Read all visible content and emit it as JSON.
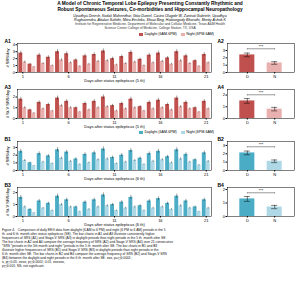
{
  "title": "A Model of Chronic Temporal Lobe Epilepsy Presenting Constantly Rhythmic and\nRobust Spontaneous Seizures, Co-morbidities and Hippocampal Neuropathology",
  "subtitle": "Upadhya Dinesh, Kodali Maheedhar, Gitai Daniel, Castro Olagide W, Zanirati Gabriele, Upadhya\nRaghavendra, Attaluri Sahithi, Mitra Eeshika, Shuai Bing, Hattiangady Bharathi, Shetty Ashok K",
  "annotations": [
    {
      "text": "Institute for Regenerative Medicine, Department of Molecular and Cellular Medicine, Texas A&M Health\nScience Center College of Medicine, College Station, TX, USA"
    }
  ],
  "caption": "Figure 4.   Comparison of daily EEG data from daylight (6 AM to 6 PM) and night (6 PM to 6 AM) periods in the 5\nth  and 6 th  month after status epilepticus (SE). The bar charts in A1 and A3 illustrate consistently higher\nfrequencies of SRS (A1) and Stage-V SRS (A3) in daylight periods than night periods in the 5 th  month after SE.\nThe bar charts in A2 and A4 compare the average frequency of SRS (A2) and Stage-V SRS (A4) over 21 consecutive\n*SRS *periods in the 5th month and night *periods in the 5 th  month after SE. The bar charts in B1 and B3\nillustrate higher frequencies of SRS (B1) and Stage-V SRS (B3) in daylight periods than night periods in the\n6 th  month after SE. The bar charts in B2 and B4 compare the average frequency of SRS (B2) and Stage-V SRS\n(B4) between the daylight and night periods in the 6 th  month after SE. ¤¤¤, p≤\u00030.0001;\n¤, p\u00030.05; ¤¤¤¤, p\u00030.0001; 0.01; ¤¤¤¤¤¤,\np\u00030.001; NS, not significant.",
  "chart_data": [
    {
      "type": "bar",
      "title": "A1",
      "xlabel": "Days after status epilepticus (5 th)",
      "ylabel": "# SRS/day",
      "categories": [
        "1",
        null,
        null,
        null,
        null,
        "6",
        null,
        null,
        null,
        null,
        "11",
        null,
        null,
        null,
        null,
        "16",
        null,
        null,
        null,
        null,
        "21"
      ],
      "series": [
        {
          "name": "Daylight (6AM-6PM)",
          "color": "#c0504d",
          "values": [
            2.8,
            1.2,
            2.5,
            2.2,
            3.0,
            2.7,
            1.8,
            2.4,
            2.6,
            3.1,
            2.0,
            2.3,
            2.9,
            1.9,
            2.5,
            2.8,
            2.1,
            3.0,
            2.4,
            1.7,
            2.6
          ],
          "errors": [
            0.28,
            0.12,
            0.25,
            0.22,
            0.3,
            0.27,
            0.18,
            0.24,
            0.26,
            0.31,
            0.2,
            0.23,
            0.29,
            0.19,
            0.25,
            0.28,
            0.21,
            0.3,
            0.24,
            0.17,
            0.26
          ]
        },
        {
          "name": "Night (6PM-6AM)",
          "color": "#e8b0ae",
          "values": [
            1.5,
            0.8,
            1.3,
            1.0,
            1.8,
            1.4,
            0.9,
            1.2,
            1.6,
            1.7,
            1.1,
            1.3,
            1.5,
            1.0,
            1.4,
            1.6,
            1.2,
            1.7,
            1.3,
            0.9,
            1.4
          ],
          "errors": [
            0.15,
            0.08,
            0.13,
            0.1,
            0.18,
            0.14,
            0.09,
            0.12,
            0.16,
            0.17,
            0.11,
            0.13,
            0.15,
            0.1,
            0.14,
            0.16,
            0.12,
            0.17,
            0.13,
            0.09,
            0.14
          ]
        }
      ],
      "ylim": [
        0,
        4.185
      ],
      "yticks": [
        0,
        1,
        2,
        3,
        4
      ],
      "legend": "upper right",
      "grid": false
    },
    {
      "type": "bar",
      "title": "A2",
      "categories": [
        "D",
        "N"
      ],
      "values": [
        2.4,
        1.3
      ],
      "errors": [
        0.25,
        0.18
      ],
      "colors": [
        "#c0504d",
        "#e8b0ae"
      ],
      "ylim": [
        0,
        3.96
      ],
      "yticks": [
        0,
        1,
        2,
        3
      ],
      "annotations": [
        {
          "text": "***",
          "y": 3.24
        }
      ],
      "grid": false
    },
    {
      "type": "bar",
      "title": "A3",
      "xlabel": "Days after status epilepticus (5 th)",
      "ylabel": "# St-V SRS/day",
      "categories": [
        "1",
        null,
        null,
        null,
        null,
        "6",
        null,
        null,
        null,
        null,
        "11",
        null,
        null,
        null,
        null,
        "16",
        null,
        null,
        null,
        null,
        "21"
      ],
      "series": [
        {
          "name": "Daylight (6AM-6PM)",
          "color": "#c0504d",
          "values": [
            1.8,
            0.8,
            1.5,
            1.3,
            1.9,
            1.6,
            1.0,
            1.4,
            1.6,
            2.0,
            1.2,
            1.4,
            1.8,
            1.1,
            1.5,
            1.7,
            1.3,
            1.9,
            1.5,
            1.0,
            1.6
          ],
          "errors": [
            0.18,
            0.08,
            0.15,
            0.13,
            0.19,
            0.16,
            0.1,
            0.14,
            0.16,
            0.2,
            0.12,
            0.14,
            0.18,
            0.11,
            0.15,
            0.17,
            0.13,
            0.19,
            0.15,
            0.1,
            0.16
          ]
        },
        {
          "name": "Night (6PM-6AM)",
          "color": "#e8b0ae",
          "values": [
            1.0,
            0.5,
            0.9,
            0.7,
            1.2,
            1.0,
            0.6,
            0.8,
            1.0,
            1.1,
            0.7,
            0.9,
            1.0,
            0.7,
            0.9,
            1.0,
            0.8,
            1.1,
            0.9,
            0.6,
            0.9
          ],
          "errors": [
            0.1,
            0.05,
            0.09,
            0.07,
            0.12,
            0.1,
            0.06,
            0.08,
            0.1,
            0.11,
            0.07,
            0.09,
            0.1,
            0.07,
            0.09,
            0.1,
            0.08,
            0.11,
            0.09,
            0.06,
            0.09
          ]
        }
      ],
      "ylim": [
        0,
        2.7
      ],
      "yticks": [
        0,
        1,
        2
      ],
      "legend": false,
      "grid": false
    },
    {
      "type": "bar",
      "title": "A4",
      "categories": [
        "D",
        "N"
      ],
      "values": [
        1.5,
        0.8
      ],
      "errors": [
        0.2,
        0.15
      ],
      "colors": [
        "#c0504d",
        "#e8b0ae"
      ],
      "ylim": [
        0,
        2.475
      ],
      "yticks": [
        0,
        1,
        2
      ],
      "annotations": [
        {
          "text": "***",
          "y": 2.025
        }
      ],
      "grid": false
    },
    {
      "type": "bar",
      "title": "B1",
      "xlabel": "Days after status epilepticus (6 th)",
      "ylabel": "# SRS/day",
      "categories": [
        "1",
        null,
        null,
        null,
        null,
        "6",
        null,
        null,
        null,
        null,
        "11",
        null,
        null,
        null,
        null,
        "16",
        null,
        null,
        null,
        null,
        "21"
      ],
      "series": [
        {
          "name": "Daylight (6AM-6PM)",
          "color": "#4bacc6",
          "values": [
            2.5,
            1.0,
            2.2,
            1.9,
            2.7,
            2.4,
            1.5,
            2.1,
            2.3,
            2.8,
            1.7,
            2.0,
            2.6,
            1.6,
            2.2,
            2.5,
            1.8,
            2.7,
            2.1,
            1.4,
            2.3
          ],
          "errors": [
            0.25,
            0.1,
            0.22,
            0.19,
            0.27,
            0.24,
            0.15,
            0.21,
            0.23,
            0.28,
            0.17,
            0.2,
            0.26,
            0.16,
            0.22,
            0.25,
            0.18,
            0.27,
            0.21,
            0.14,
            0.23
          ]
        },
        {
          "name": "Night (6PM-6AM)",
          "color": "#aed8e6",
          "values": [
            1.3,
            0.6,
            1.1,
            0.9,
            1.6,
            1.2,
            0.8,
            1.0,
            1.4,
            1.5,
            0.9,
            1.1,
            1.3,
            0.8,
            1.2,
            1.4,
            1.0,
            1.5,
            1.1,
            0.7,
            1.2
          ],
          "errors": [
            0.13,
            0.06,
            0.11,
            0.09,
            0.16,
            0.12,
            0.08,
            0.1,
            0.14,
            0.15,
            0.09,
            0.11,
            0.13,
            0.08,
            0.12,
            0.14,
            0.1,
            0.15,
            0.11,
            0.07,
            0.12
          ]
        }
      ],
      "ylim": [
        0,
        3.78
      ],
      "yticks": [
        0,
        1,
        2,
        3
      ],
      "legend": "upper right",
      "grid": false
    },
    {
      "type": "bar",
      "title": "B2",
      "categories": [
        "D",
        "N"
      ],
      "values": [
        2.1,
        1.1
      ],
      "errors": [
        0.22,
        0.16
      ],
      "colors": [
        "#4bacc6",
        "#aed8e6"
      ],
      "ylim": [
        0,
        3.465
      ],
      "yticks": [
        0,
        1,
        2,
        3
      ],
      "annotations": [
        {
          "text": "***",
          "y": 2.835
        }
      ],
      "grid": false
    },
    {
      "type": "bar",
      "title": "B3",
      "xlabel": "Days after status epilepticus (6 th)",
      "ylabel": "# St-V SRS/day",
      "categories": [
        "1",
        null,
        null,
        null,
        null,
        "6",
        null,
        null,
        null,
        null,
        "11",
        null,
        null,
        null,
        null,
        "16",
        null,
        null,
        null,
        null,
        "21"
      ],
      "series": [
        {
          "name": "Daylight (6AM-6PM)",
          "color": "#4bacc6",
          "values": [
            1.6,
            0.6,
            1.3,
            1.1,
            1.7,
            1.4,
            0.8,
            1.2,
            1.4,
            1.8,
            1.0,
            1.2,
            1.6,
            0.9,
            1.3,
            1.5,
            1.1,
            1.7,
            1.3,
            0.8,
            1.4
          ],
          "errors": [
            0.16,
            0.06,
            0.13,
            0.11,
            0.17,
            0.14,
            0.08,
            0.12,
            0.14,
            0.18,
            0.1,
            0.12,
            0.16,
            0.09,
            0.13,
            0.15,
            0.11,
            0.17,
            0.13,
            0.08,
            0.14
          ]
        },
        {
          "name": "Night (6PM-6AM)",
          "color": "#aed8e6",
          "values": [
            0.8,
            0.3,
            0.7,
            0.5,
            1.0,
            0.8,
            0.4,
            0.6,
            0.8,
            0.9,
            0.5,
            0.7,
            0.8,
            0.5,
            0.7,
            0.8,
            0.6,
            0.9,
            0.7,
            0.4,
            0.7
          ],
          "errors": [
            0.08,
            0.03,
            0.07,
            0.05,
            0.1,
            0.08,
            0.04,
            0.06,
            0.08,
            0.09,
            0.05,
            0.07,
            0.08,
            0.05,
            0.07,
            0.08,
            0.06,
            0.09,
            0.07,
            0.04,
            0.07
          ]
        }
      ],
      "ylim": [
        0,
        2.43
      ],
      "yticks": [
        0,
        1,
        2
      ],
      "legend": false,
      "grid": false
    },
    {
      "type": "bar",
      "title": "B4",
      "categories": [
        "D",
        "N"
      ],
      "values": [
        1.3,
        0.7
      ],
      "errors": [
        0.18,
        0.12
      ],
      "colors": [
        "#4bacc6",
        "#aed8e6"
      ],
      "ylim": [
        0,
        2.145
      ],
      "yticks": [
        0,
        1,
        2
      ],
      "annotations": [
        {
          "text": "***",
          "y": 1.755
        }
      ],
      "grid": false
    }
  ]
}
